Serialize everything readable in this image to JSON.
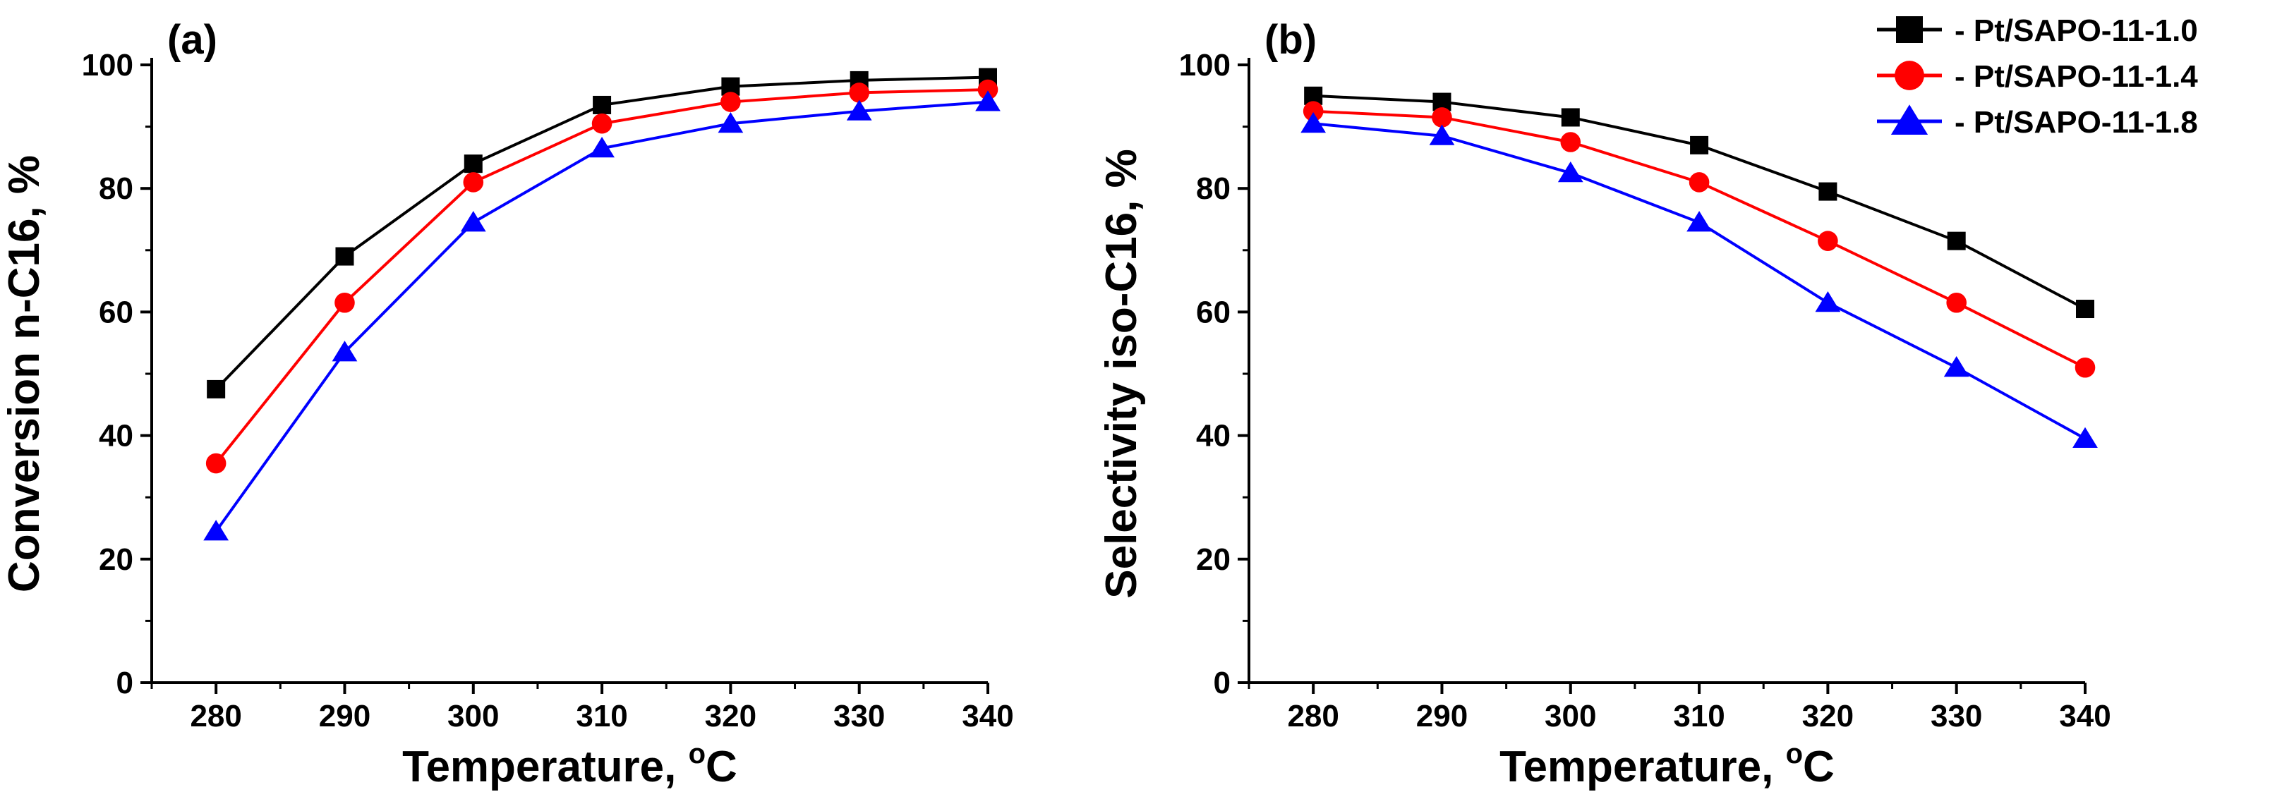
{
  "chart_data": [
    {
      "type": "line",
      "panel_label": "(a)",
      "xlabel": "Temperature, ",
      "xlabel_sup": "o",
      "xlabel_unit": "C",
      "ylabel": "Conversion n-C16, %",
      "x": [
        280,
        290,
        300,
        310,
        320,
        330,
        340
      ],
      "xlim": [
        275,
        340
      ],
      "xticks": [
        "280",
        "290",
        "300",
        "310",
        "320",
        "330",
        "340"
      ],
      "ylim": [
        0,
        100
      ],
      "yticks": [
        "0",
        "20",
        "40",
        "60",
        "80",
        "100"
      ],
      "series": [
        {
          "name": "Pt/SAPO-11-1.0",
          "values": [
            47.5,
            69.0,
            84.0,
            93.5,
            96.5,
            97.5,
            98.0
          ]
        },
        {
          "name": "Pt/SAPO-11-1.4",
          "values": [
            35.5,
            61.5,
            81.0,
            90.5,
            94.0,
            95.5,
            96.0
          ]
        },
        {
          "name": "Pt/SAPO-11-1.8",
          "values": [
            24.5,
            53.5,
            74.5,
            86.5,
            90.5,
            92.5,
            94.0
          ]
        }
      ]
    },
    {
      "type": "line",
      "panel_label": "(b)",
      "xlabel": "Temperature, ",
      "xlabel_sup": "o",
      "xlabel_unit": "C",
      "ylabel": "Selectivity iso-C16, %",
      "x": [
        280,
        290,
        300,
        310,
        320,
        330,
        340
      ],
      "xlim": [
        275,
        340
      ],
      "xticks": [
        "280",
        "290",
        "300",
        "310",
        "320",
        "330",
        "340"
      ],
      "ylim": [
        0,
        100
      ],
      "yticks": [
        "0",
        "20",
        "40",
        "60",
        "80",
        "100"
      ],
      "legend": {
        "position": "top-right",
        "entries": [
          "- Pt/SAPO-11-1.0",
          "- Pt/SAPO-11-1.4",
          "- Pt/SAPO-11-1.8"
        ]
      },
      "series": [
        {
          "name": "Pt/SAPO-11-1.0",
          "values": [
            95.0,
            94.0,
            91.5,
            87.0,
            79.5,
            71.5,
            60.5
          ]
        },
        {
          "name": "Pt/SAPO-11-1.4",
          "values": [
            92.5,
            91.5,
            87.5,
            81.0,
            71.5,
            61.5,
            51.0
          ]
        },
        {
          "name": "Pt/SAPO-11-1.8",
          "values": [
            90.5,
            88.5,
            82.5,
            74.5,
            61.5,
            51.0,
            39.5
          ]
        }
      ]
    }
  ],
  "series_style": [
    {
      "color": "#000000",
      "marker": "square"
    },
    {
      "color": "#ff0000",
      "marker": "circle"
    },
    {
      "color": "#0000ff",
      "marker": "triangle"
    }
  ]
}
